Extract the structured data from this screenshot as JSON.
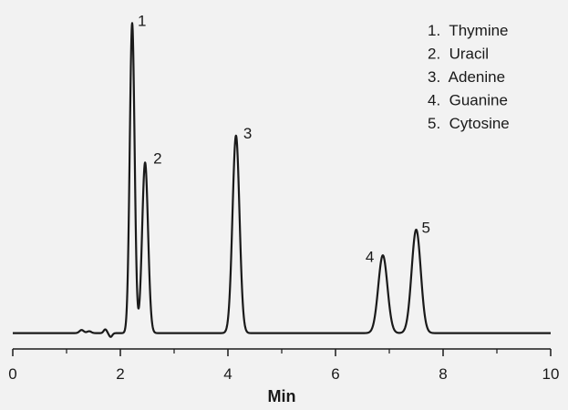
{
  "chart_data": {
    "type": "line",
    "xlabel": "Min",
    "ylabel": "",
    "xlim": [
      0,
      10
    ],
    "ylim": [
      0,
      1
    ],
    "xticks": [
      "0",
      "2",
      "4",
      "6",
      "8",
      "10"
    ],
    "xticks_minor": [
      1,
      3,
      5,
      7,
      9
    ],
    "grid": false,
    "legend_position": "top-right",
    "legend": [
      "1.  Thymine",
      "2.  Uracil",
      "3.  Adenine",
      "4.  Guanine",
      "5.  Cytosine"
    ],
    "peaks": [
      {
        "label": "1",
        "name": "Thymine",
        "x": 2.22,
        "height": 0.992
      },
      {
        "label": "2",
        "name": "Uracil",
        "x": 2.46,
        "height": 0.546
      },
      {
        "label": "3",
        "name": "Adenine",
        "x": 4.15,
        "height": 0.632
      },
      {
        "label": "4",
        "name": "Guanine",
        "x": 6.88,
        "height": 0.249
      },
      {
        "label": "5",
        "name": "Cytosine",
        "x": 7.5,
        "height": 0.331
      }
    ],
    "line_color": "#1a1a1a"
  }
}
